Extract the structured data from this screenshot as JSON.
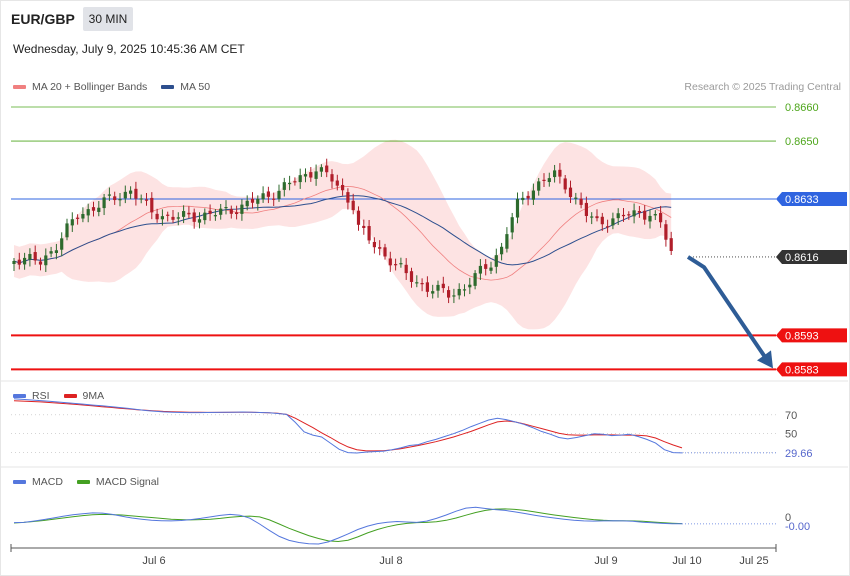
{
  "header": {
    "symbol": "EUR/GBP",
    "timeframe": "30 MIN",
    "datetime": "Wednesday, July 9, 2025 10:45:36 AM CET"
  },
  "legend": {
    "ma20": "MA 20 + Bollinger Bands",
    "ma50": "MA 50",
    "credit": "Research © 2025 Trading Central"
  },
  "colors": {
    "ma20": "#f08080",
    "ma50": "#2d4f8e",
    "band_fill": "#fde3e3",
    "up": "#2d6a2d",
    "down": "#b01e2a",
    "green_level": "#4ea61c",
    "blue_level": "#2f64e0",
    "red_level": "#ee1111",
    "arrow": "#2e5c96",
    "rsi": "#5577dd",
    "rsi_ma": "#dd2222",
    "macd": "#5577dd",
    "macd_signal": "#44a022"
  },
  "chart_data": {
    "type": "candlestick",
    "price_levels": [
      {
        "value": 0.866,
        "label": "0.8660",
        "style": "green-line"
      },
      {
        "value": 0.865,
        "label": "0.8650",
        "style": "green-line"
      },
      {
        "value": 0.8633,
        "label": "0.8633",
        "style": "blue-line"
      },
      {
        "value": 0.8616,
        "label": "0.8616",
        "style": "current-price"
      },
      {
        "value": 0.8593,
        "label": "0.8593",
        "style": "red-line"
      },
      {
        "value": 0.8583,
        "label": "0.8583",
        "style": "red-line"
      }
    ],
    "forecast_arrow": [
      0.8616,
      0.8613,
      0.8583
    ],
    "x_ticks": [
      "Jul 6",
      "Jul 8",
      "Jul 9",
      "Jul 10",
      "Jul 25"
    ],
    "rsi": {
      "name": "RSI",
      "ma_name": "9MA",
      "levels": [
        "70",
        "50"
      ],
      "value": "29.66",
      "series": [
        87,
        86.4,
        85.8,
        85.1,
        84.4,
        83.6,
        82.8,
        82,
        81.2,
        80.4,
        79.6,
        78.8,
        77.8,
        76.8,
        75.7,
        74.6,
        73.8,
        73.1,
        72.7,
        72.5,
        72.4,
        72.4,
        72.5,
        72.6,
        72.7,
        72.8,
        73,
        72.8,
        72.5,
        72.2,
        71.4,
        70.5,
        62,
        52,
        48.5,
        46.5,
        40,
        33.5,
        30,
        29.5,
        30.5,
        31,
        31.5,
        33,
        35,
        37.5,
        38.5,
        41.5,
        44,
        47,
        50,
        53.5,
        57.5,
        61,
        64.5,
        66.5,
        65,
        62.5,
        60,
        56.5,
        52.5,
        49.5,
        46,
        44.5,
        46,
        48,
        50,
        49.5,
        48,
        48.5,
        49.5,
        47,
        44,
        40,
        33,
        30,
        29.66
      ],
      "ma": [
        85,
        84.6,
        84.2,
        83.7,
        83.1,
        82.5,
        81.8,
        81.1,
        80.3,
        79.5,
        78.7,
        77.9,
        77.1,
        76.3,
        75.5,
        74.8,
        74.2,
        73.7,
        73.3,
        73,
        72.8,
        72.7,
        72.6,
        72.6,
        72.6,
        72.7,
        72.8,
        72.7,
        72.5,
        72.2,
        71.7,
        70.5,
        66.5,
        61.5,
        56.5,
        51,
        46,
        40.5,
        36,
        33,
        32,
        31.8,
        32,
        32.8,
        34,
        35.8,
        37.5,
        39.5,
        41.5,
        44,
        46.5,
        49.5,
        52.5,
        56,
        59.5,
        62.5,
        63.5,
        62.5,
        60.5,
        58,
        55.5,
        53,
        50.5,
        49,
        48.5,
        48.5,
        48.7,
        48.8,
        48.7,
        48.5,
        48.5,
        48.3,
        47.7,
        45.5,
        41.5,
        38,
        35
      ]
    },
    "macd": {
      "name": "MACD",
      "signal_name": "MACD Signal",
      "zero_label": "0",
      "value": "-0.00",
      "macd": [
        0.2,
        0.3,
        0.9,
        1.6,
        2.4,
        3.2,
        3.9,
        4.4,
        4.8,
        4.7,
        4.1,
        3.2,
        2.4,
        1.8,
        1.3,
        1.1,
        1,
        1.2,
        1.6,
        2.2,
        2.9,
        3.6,
        4.1,
        3.7,
        2.3,
        -0.5,
        -3.5,
        -6.4,
        -8.3,
        -9.3,
        -9.9,
        -10,
        -9,
        -7.2,
        -5.2,
        -3.1,
        -1.5,
        -0.3,
        0.4,
        0.7,
        0.5,
        0.3,
        0.9,
        2.2,
        3.8,
        5.6,
        7.1,
        7.5,
        6.9,
        6.4,
        6,
        5.3,
        4.5,
        3.7,
        3,
        2.4,
        1.8,
        1.3,
        1,
        0.9,
        1,
        1.1,
        1,
        0.8,
        0.4,
        0.1,
        -0.2,
        -0.4,
        -0.4
      ],
      "signal": [
        0,
        0.3,
        0.7,
        1.2,
        1.8,
        2.4,
        3,
        3.5,
        3.9,
        4.1,
        4,
        3.8,
        3.4,
        3,
        2.6,
        2.2,
        1.8,
        1.6,
        1.5,
        1.6,
        1.8,
        2.2,
        2.7,
        3.1,
        3.3,
        2.9,
        1.5,
        -0.5,
        -2.5,
        -4.3,
        -6,
        -7.4,
        -8.5,
        -8.8,
        -8.2,
        -6.6,
        -4.7,
        -3.1,
        -1.8,
        -0.8,
        -0.2,
        0.2,
        0.3,
        0.6,
        1.3,
        2.4,
        3.7,
        5,
        6,
        6.6,
        6.7,
        6.5,
        6,
        5.3,
        4.5,
        3.8,
        3.2,
        2.6,
        2.1,
        1.6,
        1.3,
        1.1,
        1.1,
        1,
        0.8,
        0.5,
        0.2,
        -0.1,
        -0.3
      ]
    }
  }
}
